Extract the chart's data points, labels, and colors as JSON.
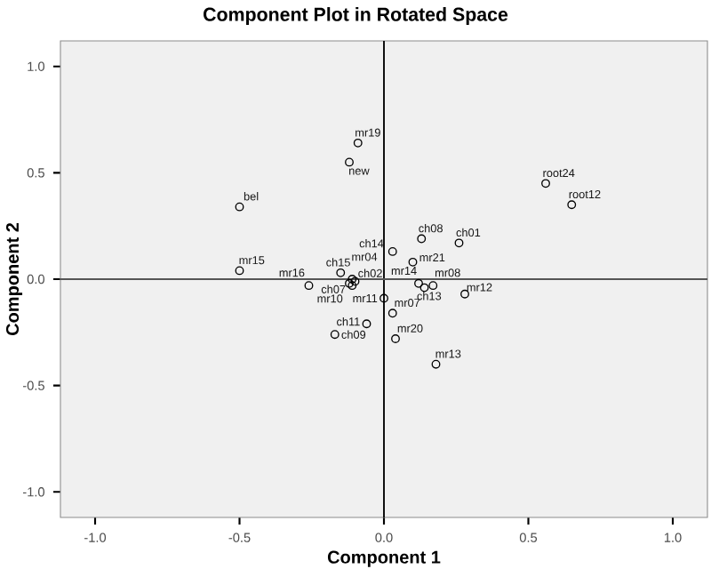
{
  "chart_data": {
    "type": "scatter",
    "title": "Component Plot in Rotated Space",
    "xlabel": "Component 1",
    "ylabel": "Component 2",
    "x": [
      -0.09,
      -0.12,
      -0.5,
      0.56,
      0.65,
      0.13,
      0.26,
      0.03,
      0.1,
      -0.5,
      -0.15,
      -0.11,
      -0.26,
      -0.11,
      -0.1,
      -0.12,
      0.12,
      0.17,
      0.14,
      0.28,
      0.0,
      0.03,
      -0.06,
      -0.17,
      0.04,
      0.18
    ],
    "values": [
      0.64,
      0.55,
      0.34,
      0.45,
      0.35,
      0.19,
      0.17,
      0.13,
      0.08,
      0.04,
      0.03,
      0.0,
      -0.03,
      -0.03,
      -0.01,
      -0.02,
      -0.02,
      -0.03,
      -0.04,
      -0.07,
      -0.09,
      -0.16,
      -0.21,
      -0.26,
      -0.28,
      -0.4
    ],
    "color": "#000000",
    "marker": "circle",
    "xlim": [
      -1.12,
      1.12
    ],
    "ylim": [
      -1.12,
      1.12
    ],
    "xticks": [
      {
        "value": -1,
        "label": "-1.0"
      },
      {
        "value": -0.5,
        "label": "-0.5"
      },
      {
        "value": 0,
        "label": "0.0"
      },
      {
        "value": 0.5,
        "label": "0.5"
      },
      {
        "value": 1,
        "label": "1.0"
      }
    ],
    "yticks": [
      {
        "value": -1,
        "label": "-1.0"
      },
      {
        "value": -0.5,
        "label": "-0.5"
      },
      {
        "value": 0,
        "label": "0.0"
      },
      {
        "value": 0.5,
        "label": "0.5"
      },
      {
        "value": 1,
        "label": "1.0"
      }
    ],
    "ref_lines": [
      {
        "axis": "x",
        "value": 0,
        "color": "#000000"
      },
      {
        "axis": "y",
        "value": 0,
        "color": "#555555"
      }
    ],
    "annotations": [
      {
        "text": "mr19",
        "x": -0.09,
        "y": 0.64
      },
      {
        "text": "new",
        "x": -0.12,
        "y": 0.55
      },
      {
        "text": "bel",
        "x": -0.5,
        "y": 0.34
      },
      {
        "text": "root24",
        "x": 0.56,
        "y": 0.45
      },
      {
        "text": "root12",
        "x": 0.65,
        "y": 0.35
      },
      {
        "text": "ch08",
        "x": 0.13,
        "y": 0.19
      },
      {
        "text": "ch01",
        "x": 0.26,
        "y": 0.17
      },
      {
        "text": "ch14",
        "x": 0.03,
        "y": 0.13
      },
      {
        "text": "mr21",
        "x": 0.1,
        "y": 0.08
      },
      {
        "text": "mr15",
        "x": -0.5,
        "y": 0.04
      },
      {
        "text": "ch15",
        "x": -0.15,
        "y": 0.03
      },
      {
        "text": "mr04",
        "x": -0.11,
        "y": 0.0
      },
      {
        "text": "mr16",
        "x": -0.26,
        "y": -0.03
      },
      {
        "text": "ch07",
        "x": -0.11,
        "y": -0.03
      },
      {
        "text": "ch02",
        "x": -0.1,
        "y": -0.01
      },
      {
        "text": "mr10",
        "x": -0.12,
        "y": -0.02
      },
      {
        "text": "mr14",
        "x": 0.12,
        "y": -0.02
      },
      {
        "text": "mr08",
        "x": 0.17,
        "y": -0.03
      },
      {
        "text": "ch13",
        "x": 0.14,
        "y": -0.04
      },
      {
        "text": "mr12",
        "x": 0.28,
        "y": -0.07
      },
      {
        "text": "mr11",
        "x": 0.0,
        "y": -0.09
      },
      {
        "text": "mr07",
        "x": 0.03,
        "y": -0.16
      },
      {
        "text": "ch11",
        "x": -0.06,
        "y": -0.21
      },
      {
        "text": "ch09",
        "x": -0.17,
        "y": -0.26
      },
      {
        "text": "mr20",
        "x": 0.04,
        "y": -0.28
      },
      {
        "text": "mr13",
        "x": 0.18,
        "y": -0.4
      }
    ]
  }
}
